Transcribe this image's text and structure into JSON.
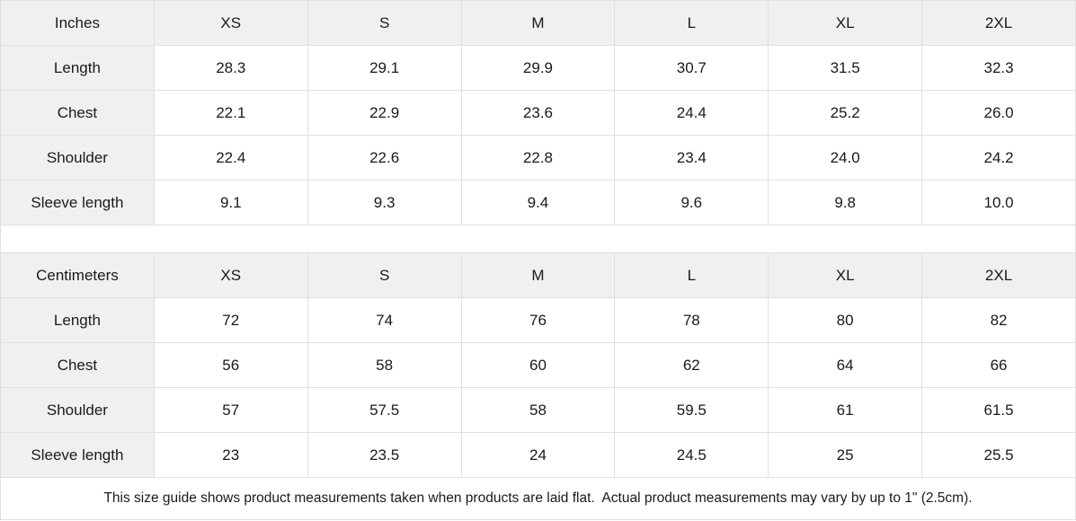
{
  "colors": {
    "header_cell_bg": "#f0f0f0",
    "grid_border": "#e0e0e0",
    "text": "#1a1a1a",
    "data_cell_bg": "#ffffff"
  },
  "tables": [
    {
      "unit_label": "Inches",
      "size_headers": [
        "XS",
        "S",
        "M",
        "L",
        "XL",
        "2XL"
      ],
      "rows": [
        {
          "label": "Length",
          "values": [
            "28.3",
            "29.1",
            "29.9",
            "30.7",
            "31.5",
            "32.3"
          ]
        },
        {
          "label": "Chest",
          "values": [
            "22.1",
            "22.9",
            "23.6",
            "24.4",
            "25.2",
            "26.0"
          ]
        },
        {
          "label": "Shoulder",
          "values": [
            "22.4",
            "22.6",
            "22.8",
            "23.4",
            "24.0",
            "24.2"
          ]
        },
        {
          "label": "Sleeve length",
          "values": [
            "9.1",
            "9.3",
            "9.4",
            "9.6",
            "9.8",
            "10.0"
          ]
        }
      ]
    },
    {
      "unit_label": "Centimeters",
      "size_headers": [
        "XS",
        "S",
        "M",
        "L",
        "XL",
        "2XL"
      ],
      "rows": [
        {
          "label": "Length",
          "values": [
            "72",
            "74",
            "76",
            "78",
            "80",
            "82"
          ]
        },
        {
          "label": "Chest",
          "values": [
            "56",
            "58",
            "60",
            "62",
            "64",
            "66"
          ]
        },
        {
          "label": "Shoulder",
          "values": [
            "57",
            "57.5",
            "58",
            "59.5",
            "61",
            "61.5"
          ]
        },
        {
          "label": "Sleeve length",
          "values": [
            "23",
            "23.5",
            "24",
            "24.5",
            "25",
            "25.5"
          ]
        }
      ]
    }
  ],
  "footer_note": "This size guide shows product measurements taken when products are laid flat.  Actual product measurements may vary by up to 1\" (2.5cm)."
}
